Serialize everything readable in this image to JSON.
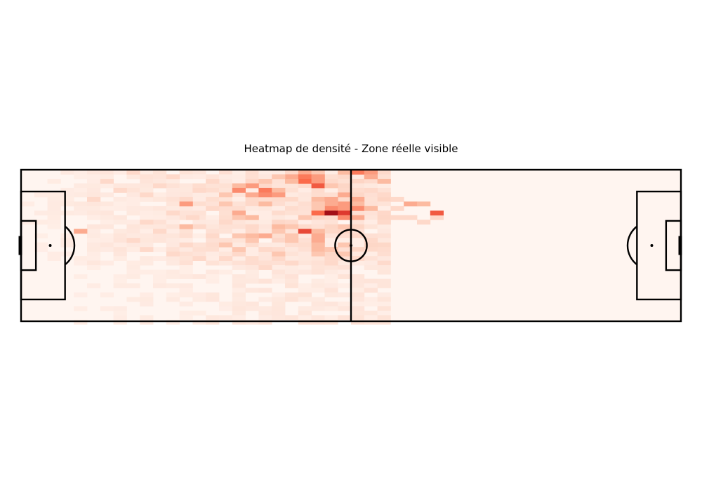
{
  "chart_data": {
    "type": "heatmap",
    "title": "Heatmap de densité - Zone réelle visible",
    "pitch": {
      "length": 120,
      "width": 80
    },
    "grid": false,
    "colormap": [
      "#fff5f0",
      "#fcbba1",
      "#fb6a4a",
      "#cb181d",
      "#67000d"
    ],
    "cell": {
      "dx": 2.4,
      "dy": 2.4
    },
    "hot_cells": [
      [
        60.0,
        0.0,
        0.45
      ],
      [
        62.4,
        0.0,
        0.35
      ],
      [
        57.6,
        0.0,
        0.25
      ],
      [
        50.4,
        0.0,
        0.3
      ],
      [
        52.8,
        0.0,
        0.2
      ],
      [
        48.0,
        2.4,
        0.3
      ],
      [
        50.4,
        2.4,
        0.45
      ],
      [
        52.8,
        2.4,
        0.35
      ],
      [
        45.6,
        2.4,
        0.2
      ],
      [
        62.4,
        2.4,
        0.3
      ],
      [
        50.4,
        4.8,
        0.5
      ],
      [
        52.8,
        4.8,
        0.35
      ],
      [
        48.0,
        4.8,
        0.25
      ],
      [
        64.8,
        4.8,
        0.25
      ],
      [
        43.2,
        4.8,
        0.2
      ],
      [
        52.8,
        7.2,
        0.55
      ],
      [
        40.8,
        7.2,
        0.35
      ],
      [
        38.4,
        7.2,
        0.25
      ],
      [
        55.2,
        7.2,
        0.2
      ],
      [
        38.4,
        9.6,
        0.4
      ],
      [
        43.2,
        9.6,
        0.45
      ],
      [
        45.6,
        9.6,
        0.25
      ],
      [
        40.8,
        12.0,
        0.3
      ],
      [
        43.2,
        12.0,
        0.4
      ],
      [
        45.6,
        12.0,
        0.35
      ],
      [
        36.0,
        12.0,
        0.2
      ],
      [
        57.6,
        12.0,
        0.3
      ],
      [
        52.8,
        14.4,
        0.25
      ],
      [
        55.2,
        14.4,
        0.3
      ],
      [
        60.0,
        14.4,
        0.3
      ],
      [
        57.6,
        16.8,
        0.35
      ],
      [
        55.2,
        16.8,
        0.3
      ],
      [
        60.0,
        16.8,
        0.25
      ],
      [
        52.8,
        16.8,
        0.2
      ],
      [
        43.2,
        16.8,
        0.25
      ],
      [
        36.0,
        16.8,
        0.2
      ],
      [
        28.8,
        16.8,
        0.35
      ],
      [
        69.6,
        16.8,
        0.3
      ],
      [
        72.0,
        16.8,
        0.25
      ],
      [
        55.2,
        19.2,
        0.4
      ],
      [
        57.6,
        19.2,
        0.35
      ],
      [
        60.0,
        19.2,
        0.4
      ],
      [
        62.4,
        19.2,
        0.25
      ],
      [
        52.8,
        19.2,
        0.2
      ],
      [
        52.8,
        21.6,
        0.5
      ],
      [
        55.2,
        21.6,
        0.85
      ],
      [
        57.6,
        21.6,
        0.65
      ],
      [
        74.4,
        21.6,
        0.55
      ],
      [
        38.4,
        21.6,
        0.3
      ],
      [
        57.6,
        24.0,
        0.4
      ],
      [
        60.0,
        24.0,
        0.3
      ],
      [
        50.4,
        24.0,
        0.2
      ],
      [
        38.4,
        24.0,
        0.2
      ],
      [
        40.8,
        24.0,
        0.25
      ],
      [
        45.6,
        28.8,
        0.25
      ],
      [
        48.0,
        28.8,
        0.2
      ],
      [
        57.6,
        28.8,
        0.2
      ],
      [
        28.8,
        28.8,
        0.25
      ],
      [
        50.4,
        31.2,
        0.6
      ],
      [
        52.8,
        31.2,
        0.25
      ],
      [
        45.6,
        31.2,
        0.2
      ],
      [
        9.6,
        31.2,
        0.3
      ],
      [
        43.2,
        33.6,
        0.3
      ],
      [
        40.8,
        33.6,
        0.25
      ],
      [
        48.0,
        33.6,
        0.2
      ],
      [
        52.8,
        33.6,
        0.3
      ],
      [
        38.4,
        33.6,
        0.2
      ],
      [
        52.8,
        36.0,
        0.3
      ],
      [
        40.8,
        36.0,
        0.2
      ],
      [
        48.0,
        36.0,
        0.2
      ],
      [
        36.0,
        38.4,
        0.2
      ],
      [
        52.8,
        38.4,
        0.25
      ],
      [
        57.6,
        38.4,
        0.2
      ],
      [
        52.8,
        40.8,
        0.25
      ],
      [
        55.2,
        40.8,
        0.2
      ],
      [
        38.4,
        40.8,
        0.2
      ],
      [
        52.8,
        43.2,
        0.2
      ],
      [
        57.6,
        43.2,
        0.2
      ],
      [
        45.6,
        43.2,
        0.2
      ]
    ],
    "mid_cells": [
      [
        19.2,
        0.0
      ],
      [
        26.4,
        2.4
      ],
      [
        33.6,
        4.8
      ],
      [
        24.0,
        7.2
      ],
      [
        31.2,
        9.6
      ],
      [
        21.6,
        12.0
      ],
      [
        28.8,
        14.4
      ],
      [
        33.6,
        19.2
      ],
      [
        26.4,
        21.6
      ],
      [
        30.0,
        24.0
      ],
      [
        21.6,
        26.4
      ],
      [
        31.2,
        28.8
      ],
      [
        24.0,
        31.2
      ],
      [
        33.6,
        33.6
      ],
      [
        19.2,
        36.0
      ],
      [
        28.8,
        38.4
      ],
      [
        21.6,
        40.8
      ],
      [
        45.6,
        45.6
      ],
      [
        48.0,
        48.0
      ],
      [
        43.2,
        50.4
      ],
      [
        55.2,
        48.0
      ],
      [
        60.0,
        45.6
      ],
      [
        62.4,
        36.0
      ],
      [
        64.8,
        26.4
      ],
      [
        67.2,
        19.2
      ],
      [
        62.4,
        9.6
      ],
      [
        64.8,
        12.0
      ],
      [
        67.2,
        14.4
      ],
      [
        67.2,
        24.0
      ],
      [
        69.6,
        24.0
      ],
      [
        74.4,
        24.0
      ],
      [
        72.0,
        26.4
      ],
      [
        14.4,
        4.8
      ],
      [
        16.8,
        9.6
      ],
      [
        12.0,
        14.4
      ],
      [
        36.0,
        26.4
      ],
      [
        40.8,
        28.8
      ],
      [
        43.2,
        40.8
      ],
      [
        38.4,
        43.2
      ],
      [
        31.2,
        45.6
      ],
      [
        26.4,
        43.2
      ],
      [
        36.0,
        45.6
      ]
    ]
  }
}
